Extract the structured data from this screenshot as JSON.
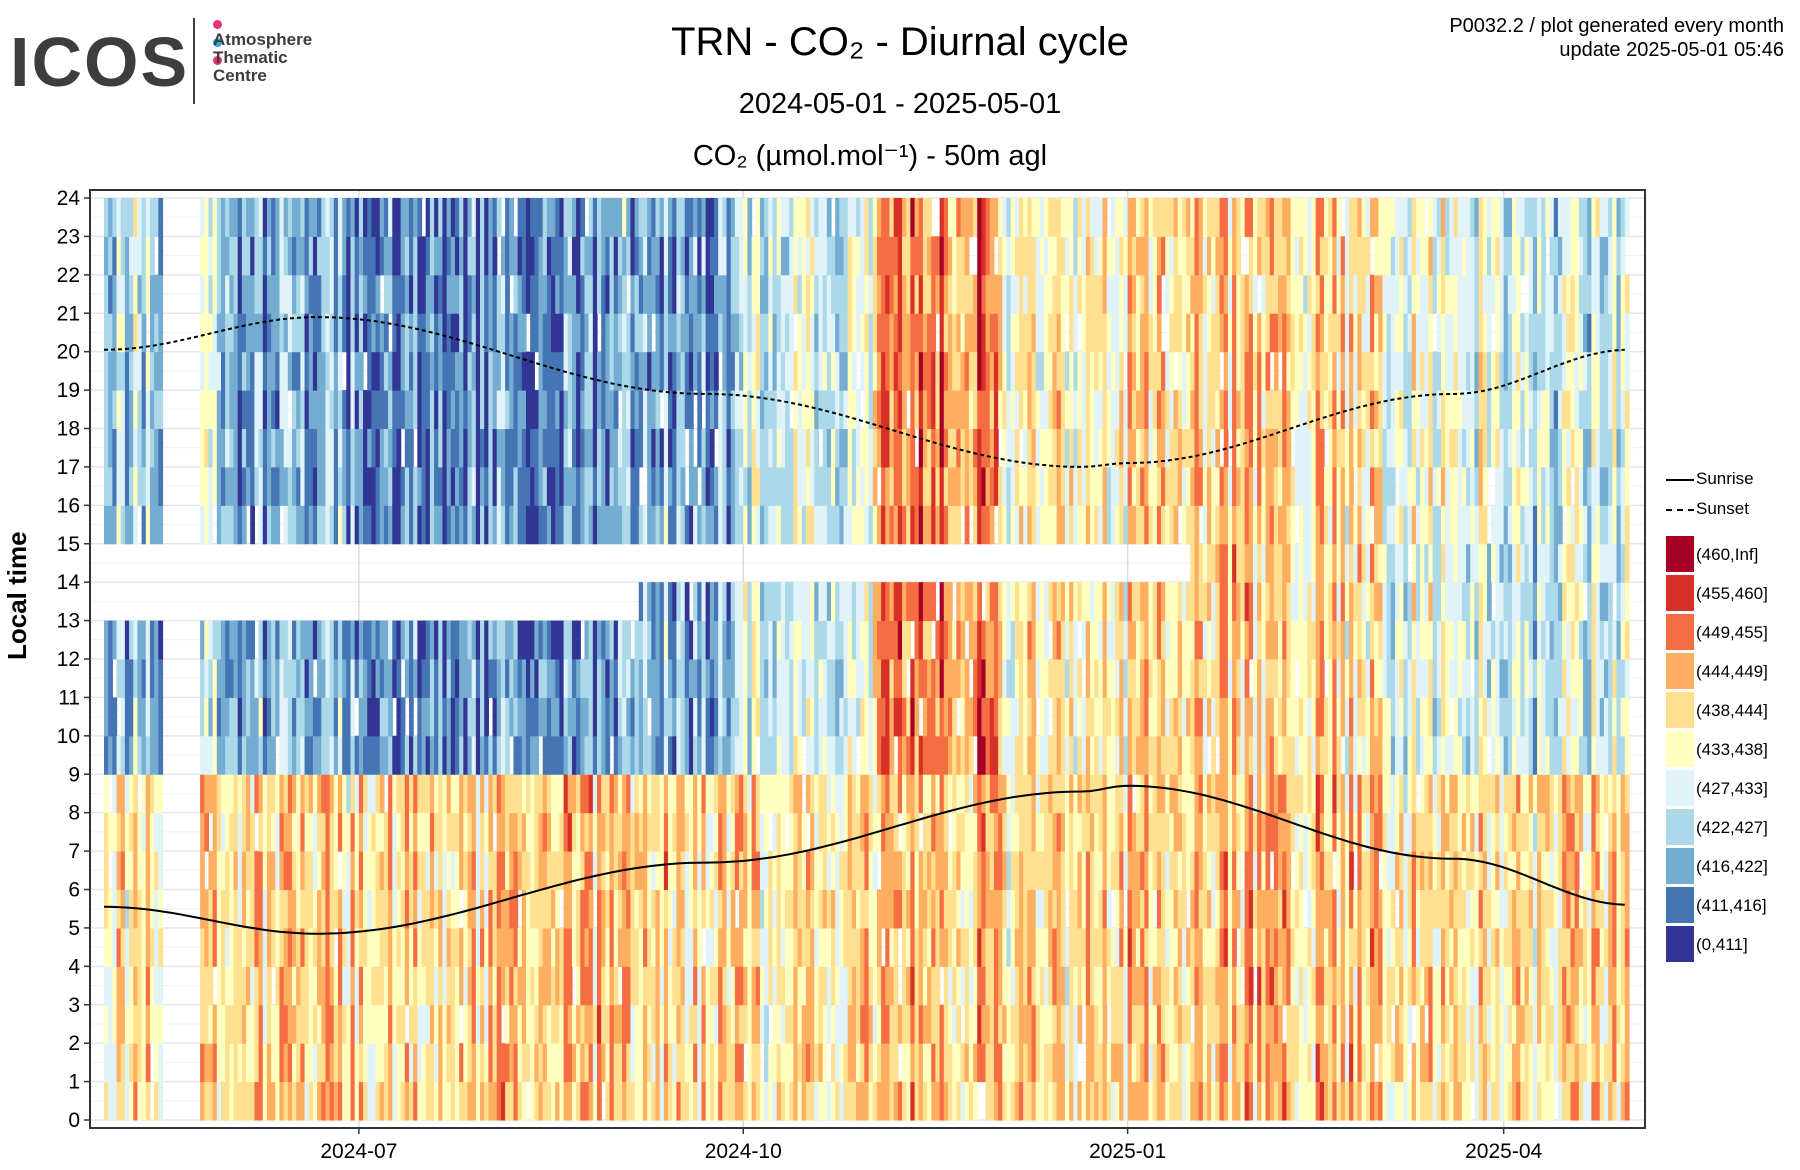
{
  "logo": {
    "word": "ICOS",
    "lines": [
      "Atmosphere",
      "Thematic",
      "Centre"
    ],
    "dot_colors": [
      "#e8327c",
      "#2aa5e0",
      "#e8327c"
    ]
  },
  "header": {
    "title": "TRN - CO₂ - Diurnal cycle",
    "date_range": "2024-05-01 - 2025-05-01",
    "plot_label": "CO₂ (µmol.mol⁻¹) - 50m agl",
    "meta_line1": "P0032.2 / plot generated every month",
    "meta_line2": "update  2025-05-01 05:46"
  },
  "chart_data": {
    "type": "heatmap",
    "title": "TRN - CO₂ - Diurnal cycle",
    "subtitle": "2024-05-01 - 2025-05-01",
    "ylabel": "Local time",
    "xlabel": "",
    "x_range": [
      "2024-05-01",
      "2025-05-01"
    ],
    "y_range": [
      0,
      24
    ],
    "x_ticks": [
      "2024-07",
      "2024-10",
      "2025-01",
      "2025-04"
    ],
    "x_tick_dates": [
      "2024-07-01",
      "2024-10-01",
      "2025-01-01",
      "2025-04-01"
    ],
    "y_ticks": [
      0,
      1,
      2,
      3,
      4,
      5,
      6,
      7,
      8,
      9,
      10,
      11,
      12,
      13,
      14,
      15,
      16,
      17,
      18,
      19,
      20,
      21,
      22,
      23,
      24
    ],
    "grid": true,
    "legend_position": "right",
    "color_bins": [
      {
        "label": "(460,Inf]",
        "color": "#a50026"
      },
      {
        "label": "(455,460]",
        "color": "#d73027"
      },
      {
        "label": "(449,455]",
        "color": "#f46d43"
      },
      {
        "label": "(444,449]",
        "color": "#fdae61"
      },
      {
        "label": "(438,444]",
        "color": "#fee090"
      },
      {
        "label": "(433,438]",
        "color": "#ffffbf"
      },
      {
        "label": "(427,433]",
        "color": "#e0f3f8"
      },
      {
        "label": "(422,427]",
        "color": "#abd9e9"
      },
      {
        "label": "(416,422]",
        "color": "#74add1"
      },
      {
        "label": "(411,416]",
        "color": "#4575b4"
      },
      {
        "label": "(0,411]",
        "color": "#313695"
      }
    ],
    "monthly_mean_bin_by_hour_band": {
      "months": [
        "2024-05",
        "2024-06",
        "2024-07",
        "2024-08",
        "2024-09",
        "2024-10",
        "2024-11",
        "2024-12",
        "2025-01",
        "2025-02",
        "2025-03",
        "2025-04"
      ],
      "night_00_09": [
        4.2,
        4.2,
        4.0,
        3.6,
        4.1,
        4.4,
        3.5,
        4.2,
        3.8,
        3.6,
        4.0,
        4.2
      ],
      "day_09_15": [
        7.6,
        8.0,
        8.3,
        8.4,
        7.8,
        6.2,
        2.3,
        4.8,
        4.0,
        4.3,
        5.5,
        6.4
      ],
      "evening_15_24": [
        6.8,
        8.1,
        8.4,
        8.6,
        8.0,
        6.3,
        2.5,
        5.0,
        4.0,
        4.1,
        5.3,
        6.3
      ]
    },
    "series": [
      {
        "name": "Sunrise",
        "style": "solid",
        "x": [
          "2024-05-01",
          "2024-06-21",
          "2024-09-22",
          "2024-12-21",
          "2025-01-01",
          "2025-03-20",
          "2025-05-01"
        ],
        "y": [
          5.55,
          4.85,
          6.7,
          8.55,
          8.7,
          6.8,
          5.6
        ]
      },
      {
        "name": "Sunset",
        "style": "dashed",
        "x": [
          "2024-05-01",
          "2024-06-21",
          "2024-09-22",
          "2024-12-21",
          "2025-01-01",
          "2025-03-20",
          "2025-05-01"
        ],
        "y": [
          20.05,
          20.9,
          18.9,
          17.0,
          17.1,
          18.9,
          20.05
        ]
      }
    ]
  }
}
